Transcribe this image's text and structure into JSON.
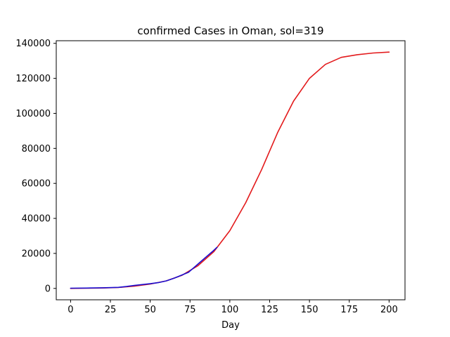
{
  "colors": {
    "fit": "#e31a1c",
    "observed": "#1a0fd1",
    "axis": "#000000",
    "background": "#ffffff"
  },
  "chart_data": {
    "type": "line",
    "title": "confirmed Cases in Oman, sol=319",
    "xlabel": "Day",
    "ylabel": "",
    "xlim": [
      -9,
      210
    ],
    "ylim": [
      -6500,
      141500
    ],
    "x_ticks": [
      0,
      25,
      50,
      75,
      100,
      125,
      150,
      175,
      200
    ],
    "y_ticks": [
      0,
      20000,
      40000,
      60000,
      80000,
      100000,
      120000,
      140000
    ],
    "grid": false,
    "series": [
      {
        "role": "fit",
        "color": "#e31a1c",
        "x": [
          0,
          10,
          20,
          30,
          40,
          50,
          60,
          70,
          80,
          90,
          100,
          110,
          120,
          130,
          140,
          150,
          160,
          170,
          180,
          190,
          200
        ],
        "y": [
          0,
          100,
          250,
          500,
          1300,
          2500,
          4300,
          7500,
          13000,
          21000,
          33000,
          49000,
          68000,
          89000,
          107000,
          120000,
          128000,
          132000,
          133500,
          134500,
          135000
        ]
      },
      {
        "role": "observed",
        "color": "#1a0fd1",
        "x": [
          0,
          10,
          20,
          30,
          35,
          40,
          45,
          50,
          55,
          60,
          65,
          70,
          74,
          78,
          82,
          86,
          89,
          92
        ],
        "y": [
          100,
          200,
          350,
          600,
          1100,
          1700,
          2200,
          2700,
          3300,
          4300,
          5800,
          7700,
          9200,
          12300,
          15500,
          18700,
          21000,
          23500
        ]
      }
    ]
  }
}
